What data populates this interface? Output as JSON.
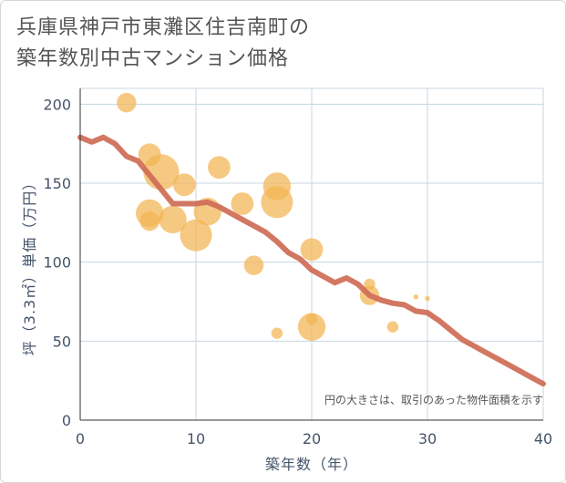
{
  "title_line1": "兵庫県神戸市東灘区住吉南町の",
  "title_line2": "築年数別中古マンション価格",
  "chart_data": {
    "type": "scatter",
    "title": "兵庫県神戸市東灘区住吉南町の築年数別中古マンション価格",
    "xlabel": "築年数（年）",
    "ylabel": "坪（3.3㎡）単価（万円）",
    "note": "円の大きさは、取引のあった物件面積を示す",
    "xlim": [
      0,
      40
    ],
    "ylim": [
      0,
      210
    ],
    "xticks": [
      0,
      10,
      20,
      30,
      40
    ],
    "yticks": [
      0,
      50,
      100,
      150,
      200
    ],
    "grid": true,
    "colors": {
      "bubble": "#f2b452",
      "line": "#d0705a",
      "grid": "#c8d6e0"
    },
    "bubbles": [
      {
        "x": 4,
        "y": 201,
        "size": 3
      },
      {
        "x": 6,
        "y": 168,
        "size": 4
      },
      {
        "x": 7,
        "y": 157,
        "size": 10
      },
      {
        "x": 9,
        "y": 149,
        "size": 4
      },
      {
        "x": 12,
        "y": 160,
        "size": 4
      },
      {
        "x": 6,
        "y": 131,
        "size": 6
      },
      {
        "x": 6,
        "y": 126,
        "size": 3
      },
      {
        "x": 8,
        "y": 127,
        "size": 6
      },
      {
        "x": 10,
        "y": 117,
        "size": 8
      },
      {
        "x": 11,
        "y": 132,
        "size": 6
      },
      {
        "x": 14,
        "y": 137,
        "size": 4
      },
      {
        "x": 17,
        "y": 148,
        "size": 6
      },
      {
        "x": 17,
        "y": 138,
        "size": 8
      },
      {
        "x": 15,
        "y": 98,
        "size": 3
      },
      {
        "x": 20,
        "y": 108,
        "size": 4
      },
      {
        "x": 20,
        "y": 64,
        "size": 1
      },
      {
        "x": 20,
        "y": 59,
        "size": 6
      },
      {
        "x": 17,
        "y": 55,
        "size": 1
      },
      {
        "x": 25,
        "y": 86,
        "size": 1
      },
      {
        "x": 25,
        "y": 79,
        "size": 3
      },
      {
        "x": 27,
        "y": 59,
        "size": 1
      },
      {
        "x": 29,
        "y": 78,
        "size": 0.2
      },
      {
        "x": 30,
        "y": 77,
        "size": 0.2
      }
    ],
    "line": {
      "x": [
        0,
        1,
        2,
        3,
        4,
        5,
        6,
        7,
        8,
        9,
        10,
        11,
        12,
        13,
        14,
        15,
        16,
        17,
        18,
        19,
        20,
        21,
        22,
        23,
        24,
        25,
        26,
        27,
        28,
        29,
        30,
        31,
        32,
        33,
        34,
        35,
        36,
        37,
        38,
        39,
        40
      ],
      "y": [
        179,
        176,
        179,
        175,
        167,
        164,
        155,
        146,
        137,
        137,
        137,
        138,
        135,
        131,
        127,
        123,
        119,
        113,
        106,
        102,
        95,
        91,
        87,
        90,
        86,
        79,
        76,
        74,
        73,
        69,
        68,
        63,
        57,
        51,
        47,
        43,
        39,
        35,
        31,
        27,
        23
      ]
    }
  }
}
